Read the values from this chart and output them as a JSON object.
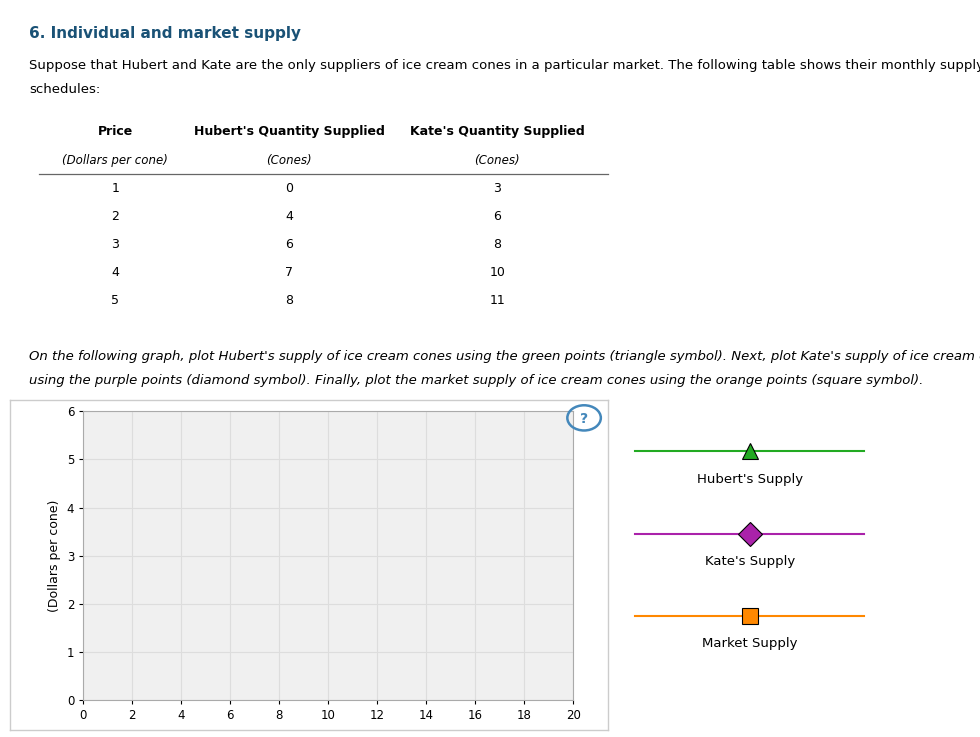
{
  "title": "6. Individual and market supply",
  "title_color": "#1a5276",
  "intro_text1": "Suppose that Hubert and Kate are the only suppliers of ice cream cones in a particular market. The following table shows their monthly supply",
  "intro_text2": "schedules:",
  "instruction_text1": "On the following graph, plot Hubert's supply of ice cream cones using the green points (triangle symbol). Next, plot Kate's supply of ice cream cones",
  "instruction_text2": "using the purple points (diamond symbol). Finally, plot the market supply of ice cream cones using the orange points (square symbol).",
  "table": {
    "col_headers": [
      "Price",
      "Hubert's Quantity Supplied",
      "Kate's Quantity Supplied"
    ],
    "col_subheaders": [
      "(Dollars per cone)",
      "(Cones)",
      "(Cones)"
    ],
    "rows": [
      [
        "1",
        "0",
        "3"
      ],
      [
        "2",
        "4",
        "6"
      ],
      [
        "3",
        "6",
        "8"
      ],
      [
        "4",
        "7",
        "10"
      ],
      [
        "5",
        "8",
        "11"
      ]
    ],
    "header_bar_color": "#c8b560",
    "alt_row_color": "#e8e8e8",
    "white_row_color": "#ffffff"
  },
  "hubert": {
    "color": "#22aa22",
    "marker": "^",
    "label": "Hubert's Supply"
  },
  "kate": {
    "color": "#aa22aa",
    "marker": "D",
    "label": "Kate's Supply"
  },
  "market": {
    "color": "#ff8800",
    "marker": "s",
    "label": "Market Supply"
  },
  "graph": {
    "xlim": [
      0,
      20
    ],
    "ylim": [
      0,
      6
    ],
    "yticks": [
      0,
      1,
      2,
      3,
      4,
      5,
      6
    ],
    "xticks": [
      0,
      2,
      4,
      6,
      8,
      10,
      12,
      14,
      16,
      18,
      20
    ],
    "ylabel": "(Dollars per cone)",
    "grid_color": "#dddddd",
    "plot_bg": "#f0f0f0",
    "panel_bg": "#ffffff"
  },
  "qmark_color": "#4488bb"
}
